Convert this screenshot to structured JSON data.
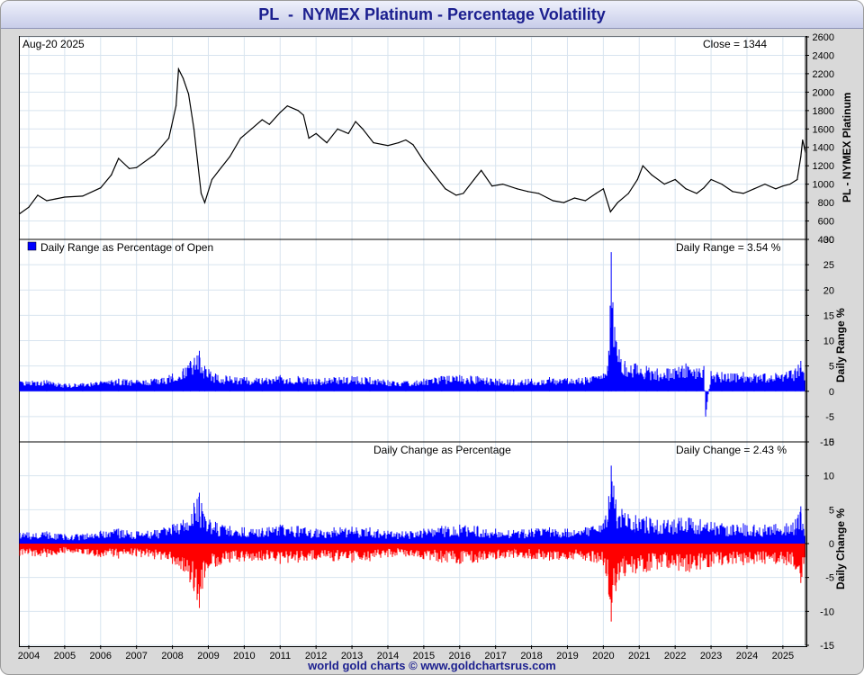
{
  "title": "PL  -  NYMEX Platinum - Percentage Volatility",
  "footer": "world gold charts © www.goldchartsrus.com",
  "colors": {
    "title": "#1b1f8f",
    "positive": "#0000ff",
    "negative": "#ff0000",
    "price": "#000000"
  },
  "chart_data": [
    {
      "type": "line",
      "name": "price",
      "title": "",
      "ylabel": "PL  -  NYMEX Platinum",
      "date_label": "Aug-20  2025",
      "readout": "Close = 1344",
      "ylim": [
        400,
        2600
      ],
      "yticks": [
        400,
        600,
        800,
        1000,
        1200,
        1400,
        1600,
        1800,
        2000,
        2200,
        2400,
        2600
      ],
      "x": [
        2003.75,
        2004.0,
        2004.25,
        2004.5,
        2004.75,
        2005.0,
        2005.5,
        2006.0,
        2006.3,
        2006.5,
        2006.8,
        2007.0,
        2007.5,
        2007.9,
        2008.1,
        2008.17,
        2008.3,
        2008.45,
        2008.6,
        2008.8,
        2008.9,
        2009.1,
        2009.3,
        2009.6,
        2009.9,
        2010.2,
        2010.5,
        2010.7,
        2011.0,
        2011.2,
        2011.5,
        2011.65,
        2011.8,
        2012.0,
        2012.3,
        2012.6,
        2012.9,
        2013.1,
        2013.3,
        2013.6,
        2014.0,
        2014.3,
        2014.5,
        2014.7,
        2015.0,
        2015.3,
        2015.6,
        2015.9,
        2016.1,
        2016.4,
        2016.6,
        2016.9,
        2017.2,
        2017.6,
        2017.9,
        2018.2,
        2018.6,
        2018.9,
        2019.2,
        2019.5,
        2019.8,
        2020.0,
        2020.2,
        2020.4,
        2020.7,
        2020.95,
        2021.1,
        2021.35,
        2021.7,
        2022.0,
        2022.3,
        2022.6,
        2022.8,
        2023.0,
        2023.3,
        2023.6,
        2023.9,
        2024.2,
        2024.5,
        2024.8,
        2025.0,
        2025.2,
        2025.4,
        2025.5,
        2025.55,
        2025.63
      ],
      "values": [
        680,
        750,
        880,
        820,
        840,
        860,
        870,
        960,
        1100,
        1280,
        1170,
        1180,
        1320,
        1500,
        1850,
        2250,
        2150,
        1980,
        1600,
        900,
        800,
        1050,
        1150,
        1300,
        1500,
        1600,
        1700,
        1650,
        1780,
        1850,
        1800,
        1750,
        1500,
        1550,
        1450,
        1600,
        1550,
        1680,
        1600,
        1450,
        1420,
        1450,
        1480,
        1430,
        1250,
        1100,
        950,
        880,
        900,
        1050,
        1150,
        980,
        1000,
        950,
        920,
        900,
        820,
        800,
        850,
        820,
        900,
        950,
        700,
        800,
        900,
        1050,
        1200,
        1100,
        1000,
        1050,
        950,
        900,
        960,
        1050,
        1000,
        920,
        900,
        950,
        1000,
        950,
        980,
        1000,
        1050,
        1300,
        1480,
        1344
      ]
    },
    {
      "type": "bar",
      "name": "daily-range",
      "title": "",
      "legend": "Daily Range as Percentage of Open",
      "readout": "Daily Range = 3.54 %",
      "ylabel": "Daily Range %",
      "ylim": [
        -10,
        30
      ],
      "yticks": [
        -10,
        -5,
        0,
        5,
        10,
        15,
        20,
        25,
        30
      ],
      "x": [
        2003.75,
        2004.5,
        2005.0,
        2005.5,
        2006.0,
        2006.5,
        2007.0,
        2007.5,
        2008.0,
        2008.3,
        2008.5,
        2008.75,
        2008.9,
        2009.2,
        2009.6,
        2010.0,
        2010.5,
        2011.0,
        2011.5,
        2012.0,
        2012.5,
        2013.0,
        2013.5,
        2014.0,
        2014.5,
        2015.0,
        2015.5,
        2016.0,
        2016.5,
        2017.0,
        2017.5,
        2018.0,
        2018.5,
        2019.0,
        2019.5,
        2020.0,
        2020.15,
        2020.22,
        2020.35,
        2020.6,
        2020.9,
        2021.2,
        2021.5,
        2021.8,
        2022.1,
        2022.3,
        2022.6,
        2022.8,
        2022.85,
        2023.0,
        2023.3,
        2023.6,
        2023.9,
        2024.2,
        2024.5,
        2024.8,
        2025.1,
        2025.35,
        2025.5,
        2025.63
      ],
      "values": [
        2.0,
        2.2,
        1.5,
        1.6,
        2.0,
        2.5,
        2.2,
        2.5,
        3.5,
        4.5,
        6.0,
        8.0,
        5.0,
        3.5,
        3.0,
        2.8,
        2.6,
        3.2,
        3.0,
        2.5,
        2.8,
        3.0,
        2.8,
        2.2,
        2.0,
        2.5,
        3.0,
        3.2,
        3.0,
        2.5,
        2.4,
        2.5,
        2.8,
        2.6,
        2.8,
        3.5,
        8.0,
        27.5,
        10.0,
        6.0,
        5.5,
        5.0,
        4.5,
        4.5,
        4.8,
        5.5,
        4.5,
        5.0,
        -5.0,
        4.0,
        3.8,
        3.5,
        3.8,
        3.5,
        3.5,
        3.6,
        3.8,
        4.5,
        6.0,
        3.54
      ]
    },
    {
      "type": "bar",
      "name": "daily-change",
      "title": "Daily Change as Percentage",
      "readout": "Daily Change = 2.43 %",
      "ylabel": "Daily Change %",
      "ylim": [
        -15,
        15
      ],
      "yticks": [
        -15,
        -10,
        -5,
        0,
        5,
        10,
        15
      ],
      "x": [
        2003.75,
        2004.5,
        2005.0,
        2005.5,
        2006.0,
        2006.5,
        2007.0,
        2007.5,
        2008.0,
        2008.3,
        2008.6,
        2008.75,
        2008.9,
        2009.2,
        2009.6,
        2010.0,
        2010.5,
        2011.0,
        2011.5,
        2012.0,
        2012.5,
        2013.0,
        2013.5,
        2014.0,
        2014.5,
        2015.0,
        2015.5,
        2016.0,
        2016.5,
        2017.0,
        2017.5,
        2018.0,
        2018.5,
        2019.0,
        2019.5,
        2020.0,
        2020.15,
        2020.22,
        2020.35,
        2020.6,
        2020.9,
        2021.2,
        2021.5,
        2021.8,
        2022.1,
        2022.4,
        2022.7,
        2023.0,
        2023.3,
        2023.6,
        2023.9,
        2024.2,
        2024.5,
        2024.8,
        2025.1,
        2025.35,
        2025.5,
        2025.63
      ],
      "up": [
        1.6,
        1.8,
        1.4,
        1.4,
        1.9,
        2.2,
        1.8,
        2.0,
        2.8,
        3.5,
        6.0,
        7.5,
        4.0,
        3.2,
        2.6,
        2.4,
        2.3,
        2.8,
        2.6,
        2.2,
        2.4,
        2.5,
        2.4,
        1.9,
        1.8,
        2.2,
        2.6,
        2.8,
        2.6,
        2.2,
        2.0,
        2.2,
        2.4,
        2.2,
        2.4,
        3.0,
        7.0,
        11.5,
        6.5,
        4.5,
        4.2,
        4.0,
        3.5,
        3.5,
        3.8,
        3.8,
        3.6,
        3.2,
        3.0,
        2.8,
        3.0,
        2.8,
        2.8,
        2.9,
        3.0,
        3.6,
        5.5,
        2.43
      ],
      "down": [
        -1.8,
        -2.0,
        -1.4,
        -1.5,
        -2.0,
        -2.2,
        -1.9,
        -2.3,
        -3.0,
        -4.0,
        -7.0,
        -9.5,
        -5.0,
        -3.4,
        -2.8,
        -2.6,
        -2.5,
        -3.0,
        -2.8,
        -2.4,
        -2.6,
        -2.8,
        -2.6,
        -2.0,
        -1.9,
        -2.3,
        -2.8,
        -3.0,
        -2.8,
        -2.3,
        -2.1,
        -2.3,
        -2.5,
        -2.3,
        -2.5,
        -3.2,
        -7.5,
        -11.5,
        -7.0,
        -4.8,
        -4.4,
        -4.2,
        -3.8,
        -3.6,
        -4.0,
        -4.2,
        -3.8,
        -3.4,
        -3.2,
        -3.0,
        -3.2,
        -3.0,
        -3.0,
        -3.0,
        -3.2,
        -3.8,
        -5.8,
        -2.0
      ]
    }
  ],
  "x_axis": {
    "xlim": [
      2003.75,
      2025.63
    ],
    "ticks": [
      "2004",
      "2005",
      "2006",
      "2007",
      "2008",
      "2009",
      "2010",
      "2011",
      "2012",
      "2013",
      "2014",
      "2015",
      "2016",
      "2017",
      "2018",
      "2019",
      "2020",
      "2021",
      "2022",
      "2023",
      "2024",
      "2025"
    ]
  }
}
